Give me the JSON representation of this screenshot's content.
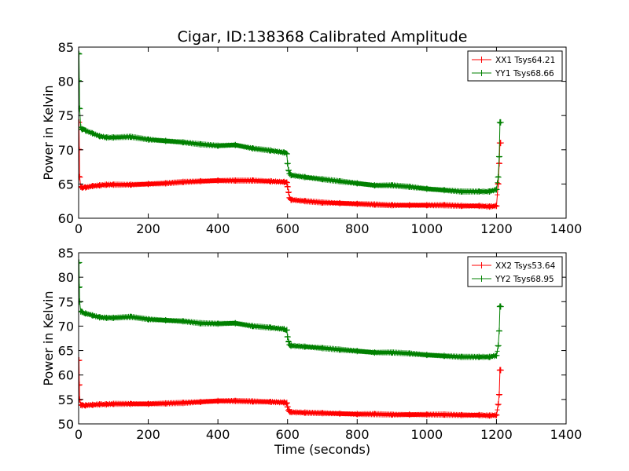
{
  "figure_title": "Cigar, ID:138368 Calibrated Amplitude",
  "colors": {
    "xx": "#ff0000",
    "yy": "#008000",
    "axes": "#000000",
    "background": "#ffffff"
  },
  "chart_data": [
    {
      "type": "line",
      "marker": "plus",
      "title": "Cigar, ID:138368 Calibrated Amplitude",
      "xlabel": "",
      "ylabel": "Power in Kelvin",
      "xlim": [
        0,
        1400
      ],
      "ylim": [
        60,
        85
      ],
      "xticks": [
        0,
        200,
        400,
        600,
        800,
        1000,
        1200,
        1400
      ],
      "yticks": [
        60,
        65,
        70,
        75,
        80,
        85
      ],
      "grid": false,
      "legend_position": "top-right",
      "series": [
        {
          "name": "XX1 Tsys64.21",
          "color": "#ff0000",
          "x": [
            1,
            2,
            3,
            6,
            10,
            20,
            40,
            60,
            80,
            100,
            150,
            200,
            250,
            300,
            350,
            400,
            450,
            500,
            550,
            590,
            598,
            600,
            603,
            606,
            610,
            650,
            700,
            750,
            800,
            850,
            900,
            950,
            1000,
            1050,
            1100,
            1150,
            1180,
            1200,
            1205,
            1208,
            1210,
            1212
          ],
          "y": [
            74,
            70,
            66,
            64.6,
            64.5,
            64.5,
            64.7,
            64.8,
            64.9,
            64.9,
            64.9,
            65.0,
            65.1,
            65.3,
            65.4,
            65.5,
            65.5,
            65.5,
            65.4,
            65.3,
            65.2,
            64.6,
            63.8,
            63.0,
            62.7,
            62.5,
            62.3,
            62.2,
            62.1,
            62.0,
            61.9,
            61.9,
            61.9,
            61.9,
            61.8,
            61.8,
            61.7,
            61.8,
            65,
            68,
            71,
            71
          ]
        },
        {
          "name": "YY1 Tsys68.66",
          "color": "#008000",
          "x": [
            1,
            2,
            3,
            6,
            10,
            20,
            40,
            60,
            80,
            100,
            150,
            200,
            250,
            300,
            350,
            400,
            450,
            500,
            550,
            590,
            598,
            600,
            603,
            606,
            610,
            650,
            700,
            750,
            800,
            850,
            900,
            950,
            1000,
            1050,
            1100,
            1150,
            1180,
            1200,
            1205,
            1208,
            1210,
            1212
          ],
          "y": [
            84,
            80,
            76,
            73.3,
            73.0,
            72.8,
            72.4,
            72.0,
            71.8,
            71.8,
            71.9,
            71.5,
            71.3,
            71.1,
            70.8,
            70.6,
            70.7,
            70.2,
            69.9,
            69.6,
            69.4,
            68.0,
            67.0,
            66.5,
            66.3,
            66.0,
            65.7,
            65.4,
            65.1,
            64.8,
            64.8,
            64.6,
            64.3,
            64.1,
            63.9,
            63.9,
            63.9,
            64.2,
            66,
            69,
            74,
            74
          ]
        }
      ]
    },
    {
      "type": "line",
      "marker": "plus",
      "title": "",
      "xlabel": "Time (seconds)",
      "ylabel": "Power in Kelvin",
      "xlim": [
        0,
        1400
      ],
      "ylim": [
        50,
        85
      ],
      "xticks": [
        0,
        200,
        400,
        600,
        800,
        1000,
        1200,
        1400
      ],
      "yticks": [
        50,
        55,
        60,
        65,
        70,
        75,
        80,
        85
      ],
      "grid": false,
      "legend_position": "top-right",
      "series": [
        {
          "name": "XX2 Tsys53.64",
          "color": "#ff0000",
          "x": [
            1,
            2,
            3,
            6,
            10,
            20,
            40,
            60,
            80,
            100,
            150,
            200,
            250,
            300,
            350,
            400,
            450,
            500,
            550,
            590,
            598,
            600,
            603,
            606,
            610,
            650,
            700,
            750,
            800,
            850,
            900,
            950,
            1000,
            1050,
            1100,
            1150,
            1180,
            1200,
            1205,
            1208,
            1210,
            1212
          ],
          "y": [
            63,
            58,
            55,
            53.9,
            53.8,
            53.8,
            53.9,
            54.0,
            54.0,
            54.1,
            54.1,
            54.1,
            54.2,
            54.3,
            54.5,
            54.7,
            54.7,
            54.6,
            54.5,
            54.4,
            54.3,
            53.5,
            52.8,
            52.5,
            52.4,
            52.3,
            52.2,
            52.1,
            52.0,
            52.0,
            51.9,
            51.9,
            51.9,
            51.9,
            51.8,
            51.8,
            51.7,
            51.8,
            54,
            56,
            61,
            61
          ]
        },
        {
          "name": "YY2 Tsys68.95",
          "color": "#008000",
          "x": [
            1,
            2,
            3,
            6,
            10,
            20,
            40,
            60,
            80,
            100,
            150,
            200,
            250,
            300,
            350,
            400,
            450,
            500,
            550,
            590,
            598,
            600,
            603,
            606,
            610,
            650,
            700,
            750,
            800,
            850,
            900,
            950,
            1000,
            1050,
            1100,
            1150,
            1180,
            1200,
            1205,
            1208,
            1210,
            1212
          ],
          "y": [
            83,
            78,
            75,
            73.0,
            72.9,
            72.6,
            72.2,
            71.8,
            71.7,
            71.7,
            71.9,
            71.4,
            71.2,
            71.0,
            70.6,
            70.5,
            70.6,
            70.0,
            69.7,
            69.4,
            69.2,
            67.8,
            66.8,
            66.2,
            66.0,
            65.8,
            65.5,
            65.2,
            64.9,
            64.6,
            64.6,
            64.4,
            64.1,
            63.9,
            63.7,
            63.7,
            63.7,
            64.0,
            66,
            69,
            74,
            74
          ]
        }
      ]
    }
  ]
}
